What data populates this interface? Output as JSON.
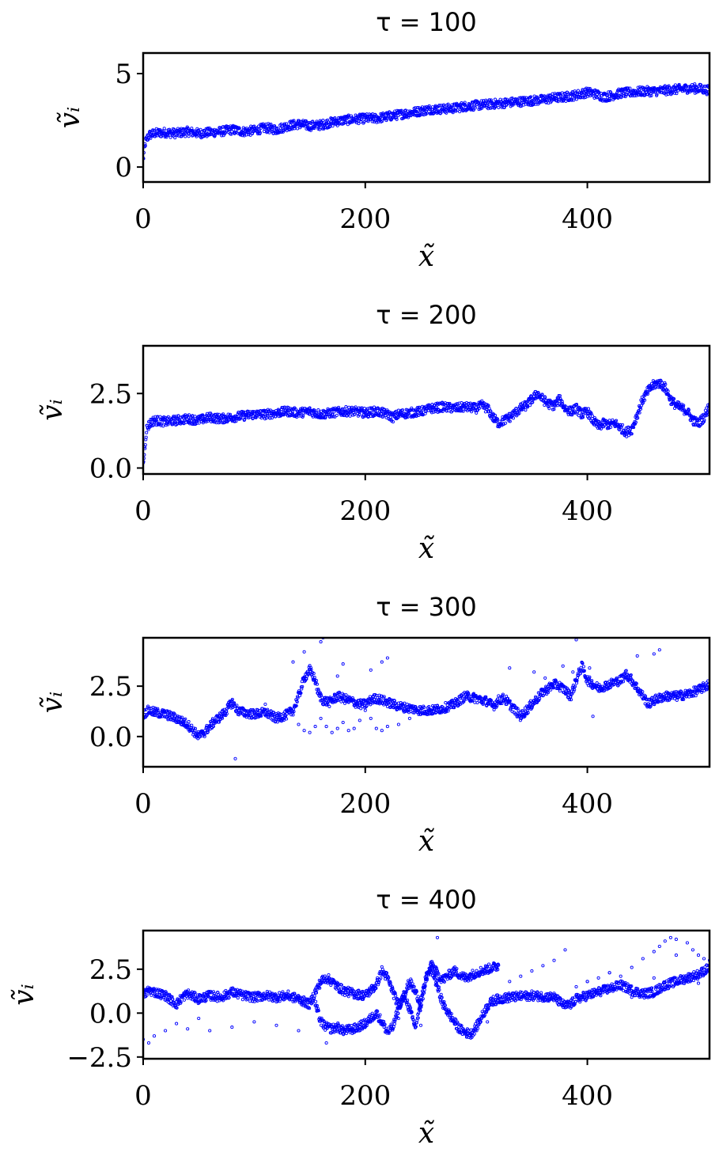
{
  "chart_data": [
    {
      "type": "scatter",
      "title": "τ = 100",
      "xlabel": "x̃",
      "ylabel": "ṽᵢ",
      "xlim": [
        0,
        510
      ],
      "ylim": [
        -0.8,
        6.1
      ],
      "xticks": [
        0,
        200,
        400
      ],
      "xtick_labels": [
        "0",
        "200",
        "400"
      ],
      "yticks": [
        0,
        5
      ],
      "ytick_labels": [
        "0",
        "5"
      ],
      "marker_color": "#0000ff",
      "series": [
        {
          "x": [
            0,
            2,
            5,
            10,
            20,
            30,
            40,
            50,
            60,
            70,
            80,
            90,
            100,
            110,
            120,
            130,
            140,
            150,
            160,
            170,
            180,
            190,
            200,
            210,
            220,
            230,
            240,
            250,
            260,
            270,
            280,
            290,
            300,
            310,
            320,
            330,
            340,
            350,
            360,
            370,
            380,
            390,
            400,
            405,
            410,
            415,
            420,
            430,
            440,
            450,
            460,
            470,
            480,
            490,
            500,
            510
          ],
          "y": [
            0.4,
            1.3,
            1.7,
            1.8,
            1.85,
            1.8,
            1.9,
            1.8,
            1.85,
            1.9,
            2.0,
            1.9,
            1.95,
            2.1,
            2.0,
            2.2,
            2.3,
            2.2,
            2.25,
            2.4,
            2.5,
            2.55,
            2.6,
            2.6,
            2.7,
            2.8,
            2.9,
            3.0,
            3.1,
            3.1,
            3.15,
            3.25,
            3.3,
            3.35,
            3.4,
            3.45,
            3.5,
            3.55,
            3.6,
            3.7,
            3.75,
            3.85,
            4.0,
            3.95,
            3.85,
            3.75,
            3.8,
            3.95,
            4.0,
            4.05,
            4.05,
            4.1,
            4.15,
            4.2,
            4.2,
            4.1
          ]
        }
      ]
    },
    {
      "type": "scatter",
      "title": "τ = 200",
      "xlabel": "x̃",
      "ylabel": "ṽᵢ",
      "xlim": [
        0,
        510
      ],
      "ylim": [
        -0.2,
        4.1
      ],
      "xticks": [
        0,
        200,
        400
      ],
      "xtick_labels": [
        "0",
        "200",
        "400"
      ],
      "yticks": [
        0,
        2.5
      ],
      "ytick_labels": [
        "0.0",
        "2.5"
      ],
      "marker_color": "#0000ff",
      "series": [
        {
          "x": [
            0,
            3,
            6,
            10,
            20,
            30,
            40,
            50,
            60,
            70,
            80,
            90,
            100,
            110,
            120,
            130,
            140,
            150,
            160,
            170,
            180,
            190,
            200,
            210,
            220,
            225,
            230,
            240,
            250,
            260,
            270,
            280,
            290,
            300,
            305,
            310,
            315,
            320,
            330,
            340,
            345,
            350,
            355,
            360,
            365,
            370,
            375,
            380,
            385,
            390,
            395,
            400,
            405,
            410,
            415,
            420,
            425,
            430,
            435,
            440,
            445,
            450,
            455,
            460,
            465,
            470,
            475,
            480,
            485,
            490,
            495,
            500,
            505,
            510
          ],
          "y": [
            0.1,
            1.3,
            1.5,
            1.6,
            1.55,
            1.6,
            1.65,
            1.6,
            1.7,
            1.65,
            1.7,
            1.75,
            1.8,
            1.8,
            1.85,
            1.9,
            1.85,
            1.9,
            1.8,
            1.85,
            1.9,
            1.9,
            1.85,
            1.9,
            1.8,
            1.7,
            1.8,
            1.85,
            1.9,
            2.0,
            2.05,
            2.0,
            2.05,
            2.0,
            2.1,
            2.0,
            1.7,
            1.5,
            1.7,
            2.0,
            2.1,
            2.3,
            2.5,
            2.3,
            2.15,
            2.1,
            2.3,
            2.0,
            1.9,
            2.0,
            1.8,
            1.9,
            1.6,
            1.4,
            1.5,
            1.45,
            1.5,
            1.35,
            1.2,
            1.3,
            1.8,
            2.3,
            2.6,
            2.8,
            2.85,
            2.7,
            2.3,
            2.1,
            2.0,
            1.9,
            1.6,
            1.5,
            1.7,
            2.1
          ]
        }
      ]
    },
    {
      "type": "scatter",
      "title": "τ = 300",
      "xlabel": "x̃",
      "ylabel": "ṽᵢ",
      "xlim": [
        0,
        510
      ],
      "ylim": [
        -1.5,
        4.9
      ],
      "xticks": [
        0,
        200,
        400
      ],
      "xtick_labels": [
        "0",
        "200",
        "400"
      ],
      "yticks": [
        0,
        2.5
      ],
      "ytick_labels": [
        "0.0",
        "2.5"
      ],
      "marker_color": "#0000ff",
      "series": [
        {
          "x": [
            0,
            5,
            10,
            20,
            30,
            40,
            45,
            50,
            55,
            60,
            65,
            70,
            75,
            80,
            85,
            90,
            100,
            110,
            120,
            130,
            135,
            140,
            145,
            150,
            155,
            158,
            162,
            168,
            175,
            180,
            185,
            190,
            195,
            200,
            205,
            210,
            220,
            230,
            240,
            250,
            260,
            270,
            280,
            290,
            300,
            305,
            310,
            315,
            320,
            325,
            330,
            335,
            340,
            345,
            350,
            355,
            360,
            365,
            370,
            375,
            380,
            385,
            390,
            395,
            400,
            410,
            420,
            430,
            435,
            440,
            445,
            450,
            455,
            460,
            470,
            480,
            490,
            500,
            510
          ],
          "y": [
            1.1,
            1.3,
            1.2,
            1.1,
            0.9,
            0.6,
            0.3,
            0.0,
            0.2,
            0.5,
            0.8,
            1.0,
            1.3,
            1.7,
            1.3,
            1.2,
            1.1,
            1.2,
            0.9,
            1.1,
            1.3,
            2.0,
            2.9,
            3.3,
            2.8,
            2.1,
            1.8,
            1.7,
            2.0,
            1.9,
            1.8,
            1.7,
            1.6,
            1.6,
            1.8,
            1.9,
            1.7,
            1.5,
            1.4,
            1.3,
            1.3,
            1.4,
            1.6,
            2.0,
            1.9,
            1.8,
            1.75,
            1.5,
            1.8,
            1.9,
            1.6,
            1.3,
            1.0,
            1.3,
            1.6,
            1.9,
            2.2,
            2.4,
            2.6,
            2.5,
            2.3,
            2.0,
            2.8,
            3.5,
            2.8,
            2.4,
            2.6,
            2.8,
            3.1,
            2.8,
            2.4,
            2.0,
            1.6,
            1.8,
            2.0,
            2.0,
            2.1,
            2.3,
            2.6
          ]
        },
        {
          "x": [
            140,
            145,
            150,
            155,
            160,
            165,
            170,
            175,
            180,
            185,
            190,
            195,
            200,
            205,
            210,
            215,
            220,
            230,
            240,
            250
          ],
          "y": [
            0.6,
            0.3,
            0.2,
            0.5,
            0.9,
            0.5,
            0.2,
            0.4,
            0.7,
            0.3,
            0.4,
            0.8,
            1.3,
            0.9,
            0.4,
            0.3,
            0.5,
            0.6,
            0.9,
            1.1
          ]
        },
        {
          "x": [
            83,
            110,
            135,
            145,
            160,
            162,
            175,
            180,
            205,
            215,
            220,
            330,
            352,
            362,
            378,
            387,
            390,
            402,
            405,
            445,
            460,
            465
          ],
          "y": [
            -1.1,
            1.6,
            3.7,
            4.2,
            4.7,
            4.9,
            3.0,
            3.6,
            3.3,
            3.7,
            3.9,
            3.4,
            3.2,
            2.9,
            3.5,
            3.2,
            4.8,
            3.4,
            1.0,
            4.0,
            4.1,
            4.3
          ]
        }
      ]
    },
    {
      "type": "scatter",
      "title": "τ = 400",
      "xlabel": "x̃",
      "ylabel": "ṽᵢ",
      "xlim": [
        0,
        510
      ],
      "ylim": [
        -2.6,
        4.7
      ],
      "xticks": [
        0,
        200,
        400
      ],
      "xtick_labels": [
        "0",
        "200",
        "400"
      ],
      "yticks": [
        -2.5,
        0,
        2.5
      ],
      "ytick_labels": [
        "−2.5",
        "0.0",
        "2.5"
      ],
      "marker_color": "#0000ff",
      "series": [
        {
          "x": [
            0,
            5,
            10,
            20,
            30,
            35,
            40,
            50,
            60,
            70,
            80,
            90,
            100,
            110,
            120,
            130,
            140,
            150,
            155,
            160,
            165,
            170,
            175,
            180,
            190,
            200,
            205,
            210,
            215,
            220,
            225,
            230,
            235,
            240,
            245,
            250,
            255,
            260,
            265,
            270,
            275,
            280,
            285,
            290,
            295,
            300,
            305,
            310,
            315,
            320,
            330,
            340,
            350,
            360,
            370,
            380,
            385,
            390,
            400,
            410,
            420,
            430,
            440,
            450,
            460,
            470,
            480,
            490,
            500,
            510
          ],
          "y": [
            1.0,
            1.3,
            1.2,
            1.0,
            0.5,
            0.9,
            1.1,
            0.8,
            1.0,
            0.9,
            1.2,
            1.0,
            0.9,
            1.0,
            0.9,
            1.0,
            0.8,
            0.5,
            1.2,
            1.8,
            2.0,
            1.8,
            1.5,
            1.3,
            1.1,
            1.0,
            1.3,
            1.6,
            2.4,
            2.0,
            1.2,
            0.4,
            1.0,
            1.8,
            1.2,
            0.6,
            2.1,
            2.5,
            1.5,
            0.5,
            0.0,
            -0.5,
            -0.9,
            -1.1,
            -1.2,
            -0.8,
            -0.2,
            0.4,
            0.7,
            0.8,
            0.9,
            0.95,
            1.0,
            0.95,
            0.9,
            0.4,
            0.5,
            0.8,
            1.0,
            1.2,
            1.4,
            1.6,
            1.3,
            1.1,
            1.2,
            1.6,
            1.8,
            2.0,
            2.2,
            2.6
          ]
        },
        {
          "x": [
            155,
            160,
            165,
            170,
            175,
            180,
            190,
            200,
            205,
            210,
            215,
            220,
            225,
            230,
            235,
            240,
            245,
            250,
            255,
            260,
            265,
            270,
            280,
            290,
            300,
            310,
            320
          ],
          "y": [
            0.5,
            -0.5,
            -0.8,
            -0.9,
            -0.8,
            -1.0,
            -0.9,
            -0.6,
            -0.3,
            0.0,
            -0.5,
            -1.1,
            -0.8,
            0.3,
            1.1,
            0.2,
            -0.8,
            0.4,
            2.0,
            2.8,
            2.2,
            1.9,
            2.4,
            2.0,
            2.3,
            2.5,
            2.7
          ]
        },
        {
          "x": [
            330,
            340,
            350,
            360,
            370,
            380,
            390,
            400,
            410,
            420,
            430,
            440,
            450,
            460,
            465,
            470,
            475,
            480,
            490,
            495,
            500,
            505,
            510
          ],
          "y": [
            1.8,
            2.1,
            2.4,
            2.7,
            3.0,
            3.6,
            1.5,
            1.8,
            2.0,
            2.3,
            2.1,
            2.6,
            3.1,
            3.5,
            3.8,
            4.1,
            4.3,
            4.2,
            4.0,
            3.6,
            3.3,
            3.1,
            3.0
          ]
        },
        {
          "x": [
            0,
            5,
            10,
            20,
            30,
            40,
            50,
            60,
            80,
            100,
            120,
            140,
            165,
            230,
            250,
            265,
            310,
            400,
            420,
            440,
            460,
            480,
            500
          ],
          "y": [
            -1.5,
            -1.7,
            -1.3,
            -1.0,
            -0.6,
            -0.9,
            -0.3,
            -1.0,
            -0.8,
            -0.5,
            -0.7,
            -1.0,
            -1.7,
            -0.3,
            -0.7,
            4.3,
            -0.5,
            1.8,
            2.3,
            0.9,
            2.0,
            3.3,
            1.7
          ]
        }
      ]
    }
  ]
}
